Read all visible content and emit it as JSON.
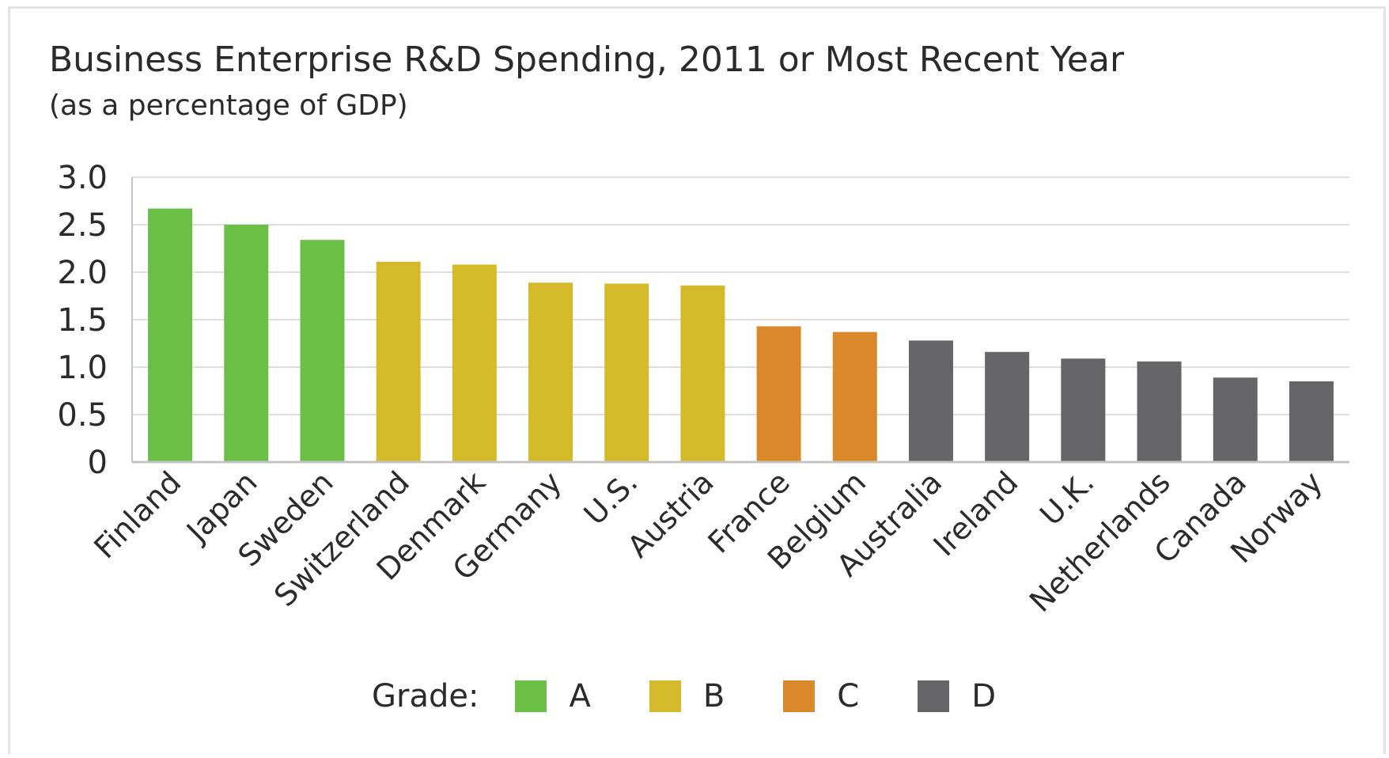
{
  "chart_data": {
    "type": "bar",
    "title": "Business Enterprise R&D Spending, 2011 or Most Recent Year",
    "subtitle": "(as a percentage of GDP)",
    "categories": [
      "Finland",
      "Japan",
      "Sweden",
      "Switzerland",
      "Denmark",
      "Germany",
      "U.S.",
      "Austria",
      "France",
      "Belgium",
      "Australia",
      "Ireland",
      "U.K.",
      "Netherlands",
      "Canada",
      "Norway"
    ],
    "values": [
      2.67,
      2.5,
      2.34,
      2.11,
      2.08,
      1.89,
      1.88,
      1.86,
      1.43,
      1.37,
      1.28,
      1.16,
      1.09,
      1.06,
      0.89,
      0.85
    ],
    "grades": [
      "A",
      "A",
      "A",
      "B",
      "B",
      "B",
      "B",
      "B",
      "C",
      "C",
      "D",
      "D",
      "D",
      "D",
      "D",
      "D"
    ],
    "ylim": [
      0,
      3.0
    ],
    "yticks": [
      "0",
      "0.5",
      "1.0",
      "1.5",
      "2.0",
      "2.5",
      "3.0"
    ],
    "grid": true,
    "legend": {
      "label": "Grade:",
      "position": "bottom",
      "items": [
        {
          "name": "A",
          "color": "#6abf47"
        },
        {
          "name": "B",
          "color": "#d4b92b"
        },
        {
          "name": "C",
          "color": "#d9892b"
        },
        {
          "name": "D",
          "color": "#656568"
        }
      ]
    }
  }
}
